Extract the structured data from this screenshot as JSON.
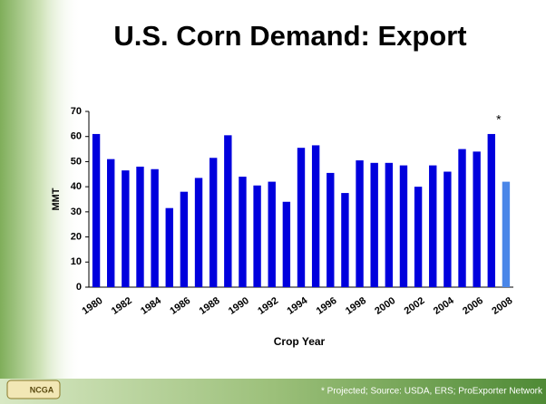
{
  "chart_data": {
    "type": "bar",
    "title": "U.S. Corn Demand: Export",
    "x_label": "Crop Year",
    "y_label": "MMT",
    "annotation": "*",
    "footnote": "* Projected; Source: USDA, ERS; ProExporter Network",
    "logo": "NCGA",
    "categories": [
      "1980",
      null,
      "1982",
      null,
      "1984",
      null,
      "1986",
      null,
      "1988",
      null,
      "1990",
      null,
      "1992",
      null,
      "1994",
      null,
      "1996",
      null,
      "1998",
      null,
      "2000",
      null,
      "2002",
      null,
      "2004",
      null,
      "2006",
      null,
      "2008"
    ],
    "values": [
      61,
      51,
      46.5,
      48,
      47,
      31.5,
      38,
      43.5,
      51.5,
      60.5,
      44,
      40.5,
      42,
      34,
      55.5,
      56.5,
      45.5,
      37.5,
      50.5,
      49.5,
      49.5,
      48.5,
      40,
      48.5,
      46,
      55,
      54,
      61,
      42
    ],
    "colors": [
      "#0000dd",
      "#0000dd",
      "#0000dd",
      "#0000dd",
      "#0000dd",
      "#0000dd",
      "#0000dd",
      "#0000dd",
      "#0000dd",
      "#0000dd",
      "#0000dd",
      "#0000dd",
      "#0000dd",
      "#0000dd",
      "#0000dd",
      "#0000dd",
      "#0000dd",
      "#0000dd",
      "#0000dd",
      "#0000dd",
      "#0000dd",
      "#0000dd",
      "#0000dd",
      "#0000dd",
      "#0000dd",
      "#0000dd",
      "#0000dd",
      "#0000dd",
      "#4a86e8"
    ],
    "ylim": [
      0,
      70
    ],
    "yticks": [
      0,
      10,
      20,
      30,
      40,
      50,
      60,
      70
    ],
    "grid": false
  }
}
